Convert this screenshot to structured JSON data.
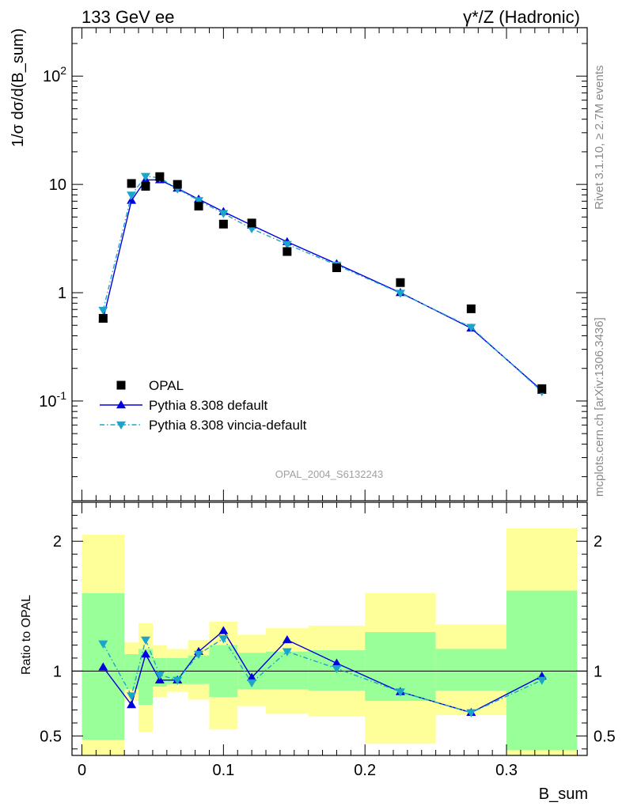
{
  "header": {
    "energy_label": "133 GeV ee",
    "process_label": "γ*/Z (Hadronic)"
  },
  "side_text": {
    "rivet": "Rivet 3.1.10, ≥ 2.7M events",
    "mcplots": "mcplots.cern.ch [arXiv:1306.3436]"
  },
  "watermark": "OPAL_2004_S6132243",
  "chart_data": [
    {
      "type": "scatter",
      "panel": "main",
      "ylabel": "1/σ dσ/d(B_sum)",
      "yscale": "log",
      "ylim": [
        0.012,
        280
      ],
      "xlim": [
        -0.007,
        0.357
      ],
      "ytick_labels": [
        "10^-1",
        "1",
        "10",
        "10^2"
      ],
      "legend_position": "bottom-left",
      "series": [
        {
          "name": "OPAL",
          "color": "#000000",
          "marker": "square",
          "x": [
            0.015,
            0.035,
            0.045,
            0.055,
            0.0675,
            0.0825,
            0.1,
            0.12,
            0.145,
            0.18,
            0.225,
            0.275,
            0.325
          ],
          "y": [
            0.58,
            10.2,
            9.6,
            11.8,
            10.0,
            6.3,
            4.3,
            4.4,
            2.4,
            1.7,
            1.24,
            0.71,
            0.13
          ]
        },
        {
          "name": "Pythia 8.308 default",
          "color": "#0000dd",
          "marker": "triangle-up",
          "line": "solid",
          "x": [
            0.015,
            0.035,
            0.045,
            0.055,
            0.0675,
            0.0825,
            0.1,
            0.12,
            0.145,
            0.18,
            0.225,
            0.275,
            0.325
          ],
          "y": [
            0.57,
            7.1,
            11.0,
            11.0,
            9.2,
            7.3,
            5.6,
            4.2,
            2.95,
            1.85,
            1.0,
            0.47,
            0.125
          ]
        },
        {
          "name": "Pythia 8.308 vincia-default",
          "color": "#1ba5c9",
          "marker": "triangle-down",
          "line": "dashdot",
          "x": [
            0.015,
            0.035,
            0.045,
            0.055,
            0.0675,
            0.0825,
            0.1,
            0.12,
            0.145,
            0.18,
            0.225,
            0.275,
            0.325
          ],
          "y": [
            0.69,
            8.0,
            11.9,
            11.5,
            9.1,
            7.1,
            5.4,
            3.9,
            2.8,
            1.8,
            0.99,
            0.48,
            0.122
          ]
        }
      ]
    },
    {
      "type": "line",
      "panel": "ratio",
      "ylabel": "Ratio to OPAL",
      "xlabel": "B_sum",
      "ylim": [
        0.35,
        2.3
      ],
      "xlim": [
        -0.007,
        0.357
      ],
      "xtick_labels": [
        "0",
        "0.1",
        "0.2",
        "0.3"
      ],
      "ytick_labels": [
        "0.5",
        "1",
        "2"
      ],
      "reference_line": 1,
      "uncertainty_bands": [
        {
          "x0": 0.0,
          "x1": 0.03,
          "inner": [
            0.47,
            1.6
          ],
          "outer": [
            0.33,
            2.05
          ]
        },
        {
          "x0": 0.03,
          "x1": 0.04,
          "inner": [
            0.86,
            1.13
          ],
          "outer": [
            0.77,
            1.22
          ]
        },
        {
          "x0": 0.04,
          "x1": 0.05,
          "inner": [
            0.74,
            1.17
          ],
          "outer": [
            0.53,
            1.37
          ]
        },
        {
          "x0": 0.05,
          "x1": 0.06,
          "inner": [
            0.88,
            1.1
          ],
          "outer": [
            0.8,
            1.2
          ]
        },
        {
          "x0": 0.06,
          "x1": 0.075,
          "inner": [
            0.9,
            1.1
          ],
          "outer": [
            0.84,
            1.17
          ]
        },
        {
          "x0": 0.075,
          "x1": 0.09,
          "inner": [
            0.9,
            1.12
          ],
          "outer": [
            0.78,
            1.24
          ]
        },
        {
          "x0": 0.09,
          "x1": 0.11,
          "inner": [
            0.8,
            1.2
          ],
          "outer": [
            0.55,
            1.38
          ]
        },
        {
          "x0": 0.11,
          "x1": 0.13,
          "inner": [
            0.86,
            1.14
          ],
          "outer": [
            0.73,
            1.28
          ]
        },
        {
          "x0": 0.13,
          "x1": 0.16,
          "inner": [
            0.86,
            1.15
          ],
          "outer": [
            0.67,
            1.33
          ]
        },
        {
          "x0": 0.16,
          "x1": 0.2,
          "inner": [
            0.85,
            1.16
          ],
          "outer": [
            0.65,
            1.35
          ]
        },
        {
          "x0": 0.2,
          "x1": 0.25,
          "inner": [
            0.77,
            1.3
          ],
          "outer": [
            0.44,
            1.6
          ]
        },
        {
          "x0": 0.25,
          "x1": 0.3,
          "inner": [
            0.85,
            1.17
          ],
          "outer": [
            0.66,
            1.36
          ]
        },
        {
          "x0": 0.3,
          "x1": 0.35,
          "inner": [
            0.39,
            1.62
          ],
          "outer": [
            0.25,
            2.1
          ]
        }
      ],
      "series": [
        {
          "name": "Pythia 8.308 default",
          "color": "#0000dd",
          "marker": "triangle-up",
          "line": "solid",
          "x": [
            0.015,
            0.035,
            0.045,
            0.055,
            0.0675,
            0.0825,
            0.1,
            0.12,
            0.145,
            0.18,
            0.225,
            0.275,
            0.325
          ],
          "y": [
            1.03,
            0.74,
            1.13,
            0.93,
            0.93,
            1.15,
            1.31,
            0.95,
            1.24,
            1.06,
            0.84,
            0.68,
            0.96
          ]
        },
        {
          "name": "Pythia 8.308 vincia-default",
          "color": "#1ba5c9",
          "marker": "triangle-down",
          "line": "dashdot",
          "x": [
            0.015,
            0.035,
            0.045,
            0.055,
            0.0675,
            0.0825,
            0.1,
            0.12,
            0.145,
            0.18,
            0.225,
            0.275,
            0.325
          ],
          "y": [
            1.21,
            0.81,
            1.24,
            0.97,
            0.93,
            1.13,
            1.25,
            0.91,
            1.15,
            1.02,
            0.84,
            0.68,
            0.93
          ]
        }
      ]
    }
  ]
}
